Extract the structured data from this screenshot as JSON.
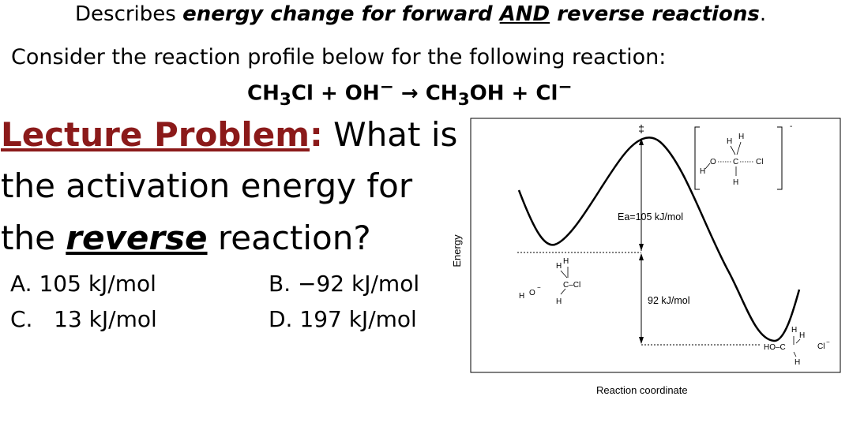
{
  "heading": {
    "prefix": "Describes ",
    "emph1": "energy change for forward ",
    "and": "AND",
    "emph2": " reverse reactions",
    "end": "."
  },
  "consider": "Consider the reaction profile below for the following reaction:",
  "equation": {
    "r1": "CH",
    "r1_sub": "3",
    "r1_rest": "Cl + OH",
    "r1_sup": "−",
    "arrow": " → ",
    "p1": "CH",
    "p1_sub": "3",
    "p1_rest": "OH + Cl",
    "p1_sup": "−"
  },
  "question": {
    "label": "Lecture Problem",
    "colon": ":",
    "line1_rest": " What is",
    "line2": "the activation energy for",
    "line3_pre": "the ",
    "line3_emph": "reverse",
    "line3_post": " reaction?"
  },
  "options": [
    {
      "letter": "A.",
      "value": "105 kJ/mol"
    },
    {
      "letter": "B.",
      "value": "−92 kJ/mol"
    },
    {
      "letter": "C.",
      "value": "13 kJ/mol"
    },
    {
      "letter": "D.",
      "value": "197 kJ/mol"
    }
  ],
  "diagram": {
    "y_axis_label": "Energy",
    "x_axis_label": "Reaction coordinate",
    "ts_symbol": "‡",
    "ea_label": "Ea=105 kJ/mol",
    "dh_label": "92 kJ/mol",
    "reactant": {
      "h2o": "H",
      "o_minus": "O",
      "minus": "−",
      "h_top1": "H",
      "h_top2": "H",
      "ccl": "C–Cl",
      "h_bot": "H"
    },
    "product": {
      "ho": "HO–C",
      "h1": "H",
      "h2": "H",
      "h_bot": "H",
      "cl": "Cl",
      "minus": "−"
    },
    "transition_state": {
      "h1": "H",
      "h2": "H",
      "o": "O",
      "c": "C",
      "cl": "Cl",
      "h_left": "H",
      "h_bot": "H",
      "minus": "-"
    }
  }
}
